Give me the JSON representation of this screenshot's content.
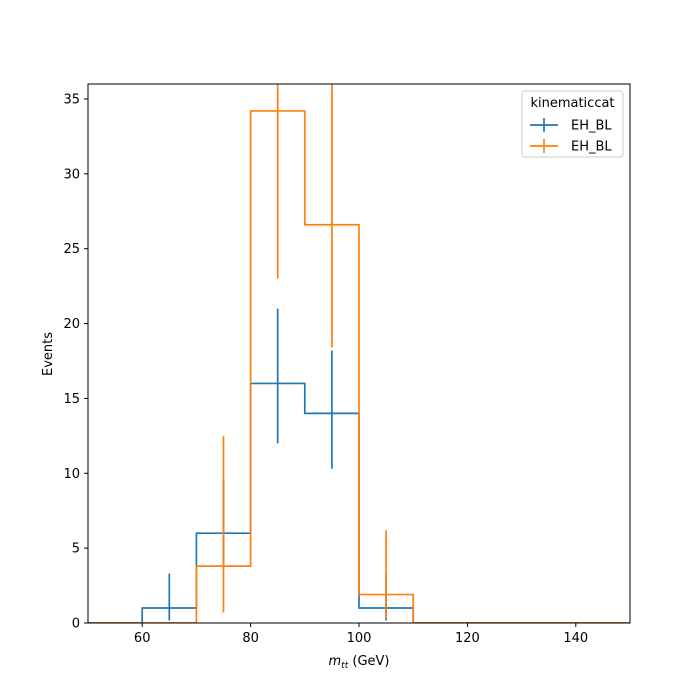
{
  "chart_data": {
    "type": "histogram-step",
    "xlabel": "m_tt (GeV)",
    "xlabel_main": "m",
    "xlabel_sub": "tt",
    "xlabel_unit": " (GeV)",
    "ylabel": "Events",
    "xlim": [
      50,
      150
    ],
    "ylim": [
      0,
      36
    ],
    "xticks": [
      60,
      80,
      100,
      120,
      140
    ],
    "yticks": [
      0,
      5,
      10,
      15,
      20,
      25,
      30,
      35
    ],
    "grid": false,
    "legend": {
      "title": "kinematiccat",
      "placement": "top-right"
    },
    "bin_edges": [
      50,
      60,
      70,
      80,
      90,
      100,
      110,
      120,
      130,
      140,
      150
    ],
    "series": [
      {
        "name": "EH_BL",
        "color": "#1f77b4",
        "values": [
          0,
          1,
          6,
          16,
          14,
          1,
          0,
          0,
          0,
          0
        ],
        "errors": [
          {
            "x": 65,
            "lo": 0.17,
            "hi": 3.3
          },
          {
            "x": 75,
            "lo": 3.6,
            "hi": 9.6
          },
          {
            "x": 85,
            "lo": 12.0,
            "hi": 21.0
          },
          {
            "x": 95,
            "lo": 10.3,
            "hi": 18.2
          },
          {
            "x": 105,
            "lo": 0.17,
            "hi": 3.3
          }
        ]
      },
      {
        "name": "EH_BL",
        "color": "#ff7f0e",
        "values": [
          0,
          0,
          3.8,
          34.2,
          26.6,
          1.9,
          0,
          0,
          0,
          0
        ],
        "errors": [
          {
            "x": 75,
            "lo": 0.7,
            "hi": 12.5
          },
          {
            "x": 85,
            "lo": 23.0,
            "hi": 36
          },
          {
            "x": 95,
            "lo": 18.4,
            "hi": 36
          },
          {
            "x": 105,
            "lo": 0.3,
            "hi": 6.2
          }
        ]
      }
    ]
  }
}
